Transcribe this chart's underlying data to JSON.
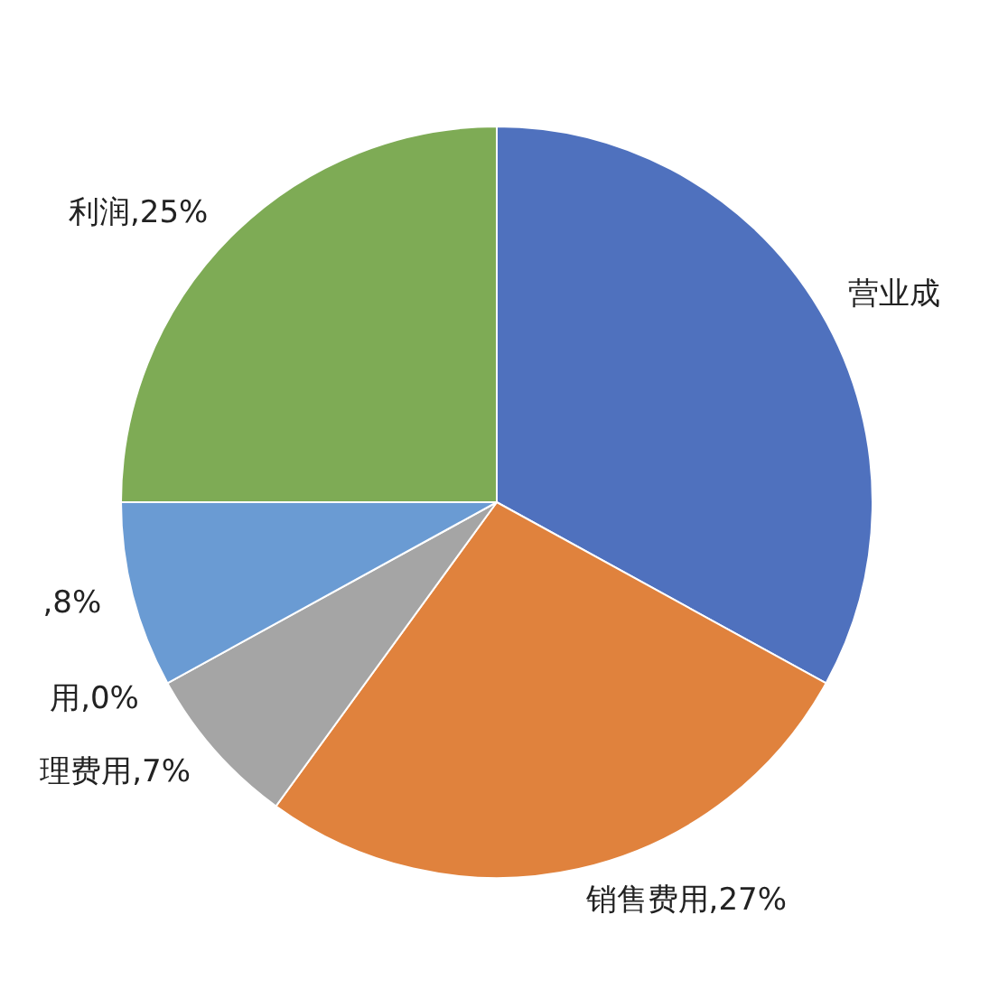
{
  "chart_data": {
    "type": "pie",
    "categories": [
      "营业成",
      "销售费用",
      "理费用",
      "用",
      null,
      "利润"
    ],
    "values": [
      33,
      27,
      7,
      0,
      8,
      25
    ],
    "value_labels": [
      null,
      ",27%",
      ",7%",
      ",0%",
      ",8%",
      ",25%"
    ],
    "colors": [
      "#4f71be",
      "#e0823d",
      "#a5a5a5",
      "#ffc000",
      "#6a9bd3",
      "#7eab55"
    ]
  }
}
